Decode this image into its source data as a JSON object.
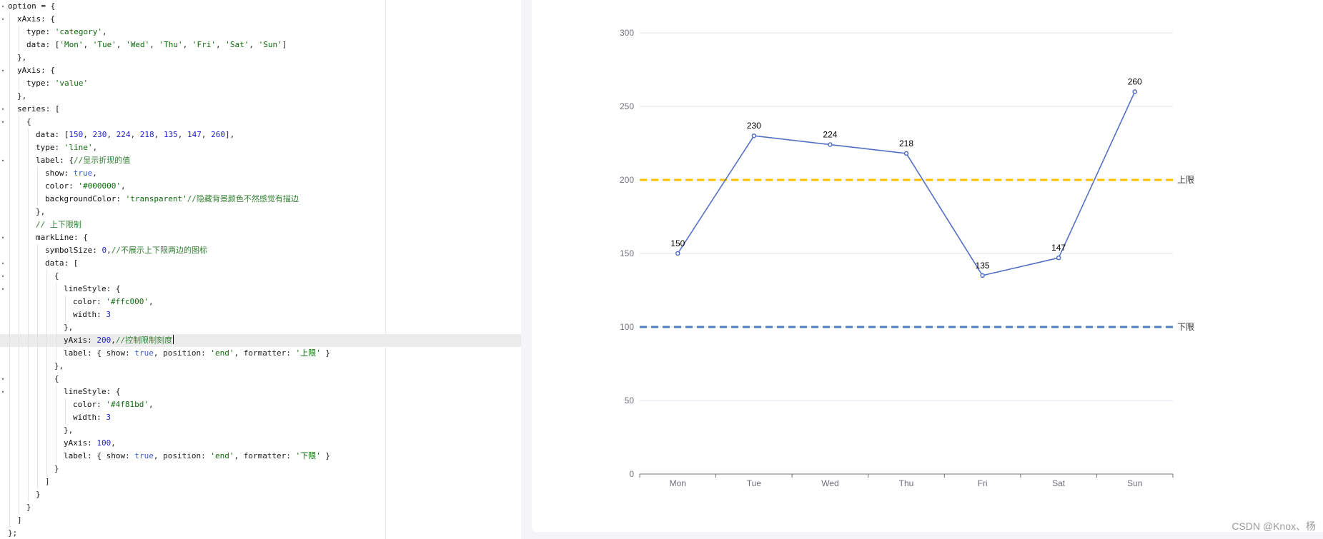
{
  "editor": {
    "lines": [
      {
        "fold": true,
        "indent": 0,
        "tokens": [
          [
            "k",
            "option = {"
          ]
        ]
      },
      {
        "fold": true,
        "indent": 1,
        "tokens": [
          [
            "k",
            "xAxis: {"
          ]
        ]
      },
      {
        "fold": false,
        "indent": 2,
        "tokens": [
          [
            "k",
            "type: "
          ],
          [
            "s",
            "'category'"
          ],
          [
            "p",
            ","
          ]
        ]
      },
      {
        "fold": false,
        "indent": 2,
        "tokens": [
          [
            "k",
            "data: ["
          ],
          [
            "s",
            "'Mon'"
          ],
          [
            "p",
            ", "
          ],
          [
            "s",
            "'Tue'"
          ],
          [
            "p",
            ", "
          ],
          [
            "s",
            "'Wed'"
          ],
          [
            "p",
            ", "
          ],
          [
            "s",
            "'Thu'"
          ],
          [
            "p",
            ", "
          ],
          [
            "s",
            "'Fri'"
          ],
          [
            "p",
            ", "
          ],
          [
            "s",
            "'Sat'"
          ],
          [
            "p",
            ", "
          ],
          [
            "s",
            "'Sun'"
          ],
          [
            "p",
            "]"
          ]
        ]
      },
      {
        "fold": false,
        "indent": 1,
        "tokens": [
          [
            "p",
            "},"
          ]
        ]
      },
      {
        "fold": true,
        "indent": 1,
        "tokens": [
          [
            "k",
            "yAxis: {"
          ]
        ]
      },
      {
        "fold": false,
        "indent": 2,
        "tokens": [
          [
            "k",
            "type: "
          ],
          [
            "s",
            "'value'"
          ]
        ]
      },
      {
        "fold": false,
        "indent": 1,
        "tokens": [
          [
            "p",
            "},"
          ]
        ]
      },
      {
        "fold": true,
        "indent": 1,
        "tokens": [
          [
            "k",
            "series: ["
          ]
        ]
      },
      {
        "fold": true,
        "indent": 2,
        "tokens": [
          [
            "p",
            "{"
          ]
        ]
      },
      {
        "fold": false,
        "indent": 3,
        "tokens": [
          [
            "k",
            "data: ["
          ],
          [
            "n",
            "150"
          ],
          [
            "p",
            ", "
          ],
          [
            "n",
            "230"
          ],
          [
            "p",
            ", "
          ],
          [
            "n",
            "224"
          ],
          [
            "p",
            ", "
          ],
          [
            "n",
            "218"
          ],
          [
            "p",
            ", "
          ],
          [
            "n",
            "135"
          ],
          [
            "p",
            ", "
          ],
          [
            "n",
            "147"
          ],
          [
            "p",
            ", "
          ],
          [
            "n",
            "260"
          ],
          [
            "p",
            "],"
          ]
        ]
      },
      {
        "fold": false,
        "indent": 3,
        "tokens": [
          [
            "k",
            "type: "
          ],
          [
            "s",
            "'line'"
          ],
          [
            "p",
            ","
          ]
        ]
      },
      {
        "fold": true,
        "indent": 3,
        "tokens": [
          [
            "k",
            "label: {"
          ],
          [
            "c",
            "//显示折现的值"
          ]
        ]
      },
      {
        "fold": false,
        "indent": 4,
        "tokens": [
          [
            "k",
            "show: "
          ],
          [
            "b",
            "true"
          ],
          [
            "p",
            ","
          ]
        ]
      },
      {
        "fold": false,
        "indent": 4,
        "tokens": [
          [
            "k",
            "color: "
          ],
          [
            "s",
            "'#000000'"
          ],
          [
            "p",
            ","
          ]
        ]
      },
      {
        "fold": false,
        "indent": 4,
        "tokens": [
          [
            "k",
            "backgroundColor: "
          ],
          [
            "s",
            "'transparent'"
          ],
          [
            "c",
            "//隐藏背景颜色不然感觉有描边"
          ]
        ]
      },
      {
        "fold": false,
        "indent": 3,
        "tokens": [
          [
            "p",
            "},"
          ]
        ]
      },
      {
        "fold": false,
        "indent": 3,
        "tokens": [
          [
            "c",
            "// 上下限制"
          ]
        ]
      },
      {
        "fold": true,
        "indent": 3,
        "tokens": [
          [
            "k",
            "markLine: {"
          ]
        ]
      },
      {
        "fold": false,
        "indent": 4,
        "tokens": [
          [
            "k",
            "symbolSize: "
          ],
          [
            "n",
            "0"
          ],
          [
            "p",
            ","
          ],
          [
            "c",
            "//不展示上下限两边的图标"
          ]
        ]
      },
      {
        "fold": true,
        "indent": 4,
        "tokens": [
          [
            "k",
            "data: ["
          ]
        ]
      },
      {
        "fold": true,
        "indent": 5,
        "tokens": [
          [
            "p",
            "{"
          ]
        ]
      },
      {
        "fold": true,
        "indent": 6,
        "tokens": [
          [
            "k",
            "lineStyle: {"
          ]
        ]
      },
      {
        "fold": false,
        "indent": 7,
        "tokens": [
          [
            "k",
            "color: "
          ],
          [
            "s",
            "'#ffc000'"
          ],
          [
            "p",
            ","
          ]
        ]
      },
      {
        "fold": false,
        "indent": 7,
        "tokens": [
          [
            "k",
            "width: "
          ],
          [
            "n",
            "3"
          ]
        ]
      },
      {
        "fold": false,
        "indent": 6,
        "tokens": [
          [
            "p",
            "},"
          ]
        ]
      },
      {
        "fold": false,
        "indent": 6,
        "active": true,
        "caret": true,
        "tokens": [
          [
            "k",
            "yAxis: "
          ],
          [
            "n",
            "200"
          ],
          [
            "p",
            ","
          ],
          [
            "c",
            "//控制限制刻度"
          ]
        ]
      },
      {
        "fold": false,
        "indent": 6,
        "tokens": [
          [
            "k",
            "label: { show: "
          ],
          [
            "b",
            "true"
          ],
          [
            "p",
            ", position: "
          ],
          [
            "s",
            "'end'"
          ],
          [
            "p",
            ", formatter: "
          ],
          [
            "s",
            "'上限'"
          ],
          [
            "p",
            " }"
          ]
        ]
      },
      {
        "fold": false,
        "indent": 5,
        "tokens": [
          [
            "p",
            "},"
          ]
        ]
      },
      {
        "fold": true,
        "indent": 5,
        "tokens": [
          [
            "p",
            "{"
          ]
        ]
      },
      {
        "fold": true,
        "indent": 6,
        "tokens": [
          [
            "k",
            "lineStyle: {"
          ]
        ]
      },
      {
        "fold": false,
        "indent": 7,
        "tokens": [
          [
            "k",
            "color: "
          ],
          [
            "s",
            "'#4f81bd'"
          ],
          [
            "p",
            ","
          ]
        ]
      },
      {
        "fold": false,
        "indent": 7,
        "tokens": [
          [
            "k",
            "width: "
          ],
          [
            "n",
            "3"
          ]
        ]
      },
      {
        "fold": false,
        "indent": 6,
        "tokens": [
          [
            "p",
            "},"
          ]
        ]
      },
      {
        "fold": false,
        "indent": 6,
        "tokens": [
          [
            "k",
            "yAxis: "
          ],
          [
            "n",
            "100"
          ],
          [
            "p",
            ","
          ]
        ]
      },
      {
        "fold": false,
        "indent": 6,
        "tokens": [
          [
            "k",
            "label: { show: "
          ],
          [
            "b",
            "true"
          ],
          [
            "p",
            ", position: "
          ],
          [
            "s",
            "'end'"
          ],
          [
            "p",
            ", formatter: "
          ],
          [
            "s",
            "'下限'"
          ],
          [
            "p",
            " }"
          ]
        ]
      },
      {
        "fold": false,
        "indent": 5,
        "tokens": [
          [
            "p",
            "}"
          ]
        ]
      },
      {
        "fold": false,
        "indent": 4,
        "tokens": [
          [
            "p",
            "]"
          ]
        ]
      },
      {
        "fold": false,
        "indent": 3,
        "tokens": [
          [
            "p",
            "}"
          ]
        ]
      },
      {
        "fold": false,
        "indent": 2,
        "tokens": [
          [
            "p",
            "}"
          ]
        ]
      },
      {
        "fold": false,
        "indent": 1,
        "tokens": [
          [
            "p",
            "]"
          ]
        ]
      },
      {
        "fold": false,
        "indent": 0,
        "tokens": [
          [
            "p",
            "};"
          ]
        ]
      }
    ]
  },
  "chart_data": {
    "type": "line",
    "categories": [
      "Mon",
      "Tue",
      "Wed",
      "Thu",
      "Fri",
      "Sat",
      "Sun"
    ],
    "series": [
      {
        "values": [
          150,
          230,
          224,
          218,
          135,
          147,
          260
        ],
        "color": "#5470c6"
      }
    ],
    "ylim": [
      0,
      300
    ],
    "yticks": [
      0,
      50,
      100,
      150,
      200,
      250,
      300
    ],
    "grid": true,
    "mark_lines": [
      {
        "y": 200,
        "label": "上限",
        "color": "#ffc000",
        "style": "dashed"
      },
      {
        "y": 100,
        "label": "下限",
        "color": "#4f81bd",
        "style": "dashed"
      }
    ],
    "title": "",
    "xlabel": "",
    "ylabel": ""
  },
  "watermark": "CSDN @Knox、杨"
}
